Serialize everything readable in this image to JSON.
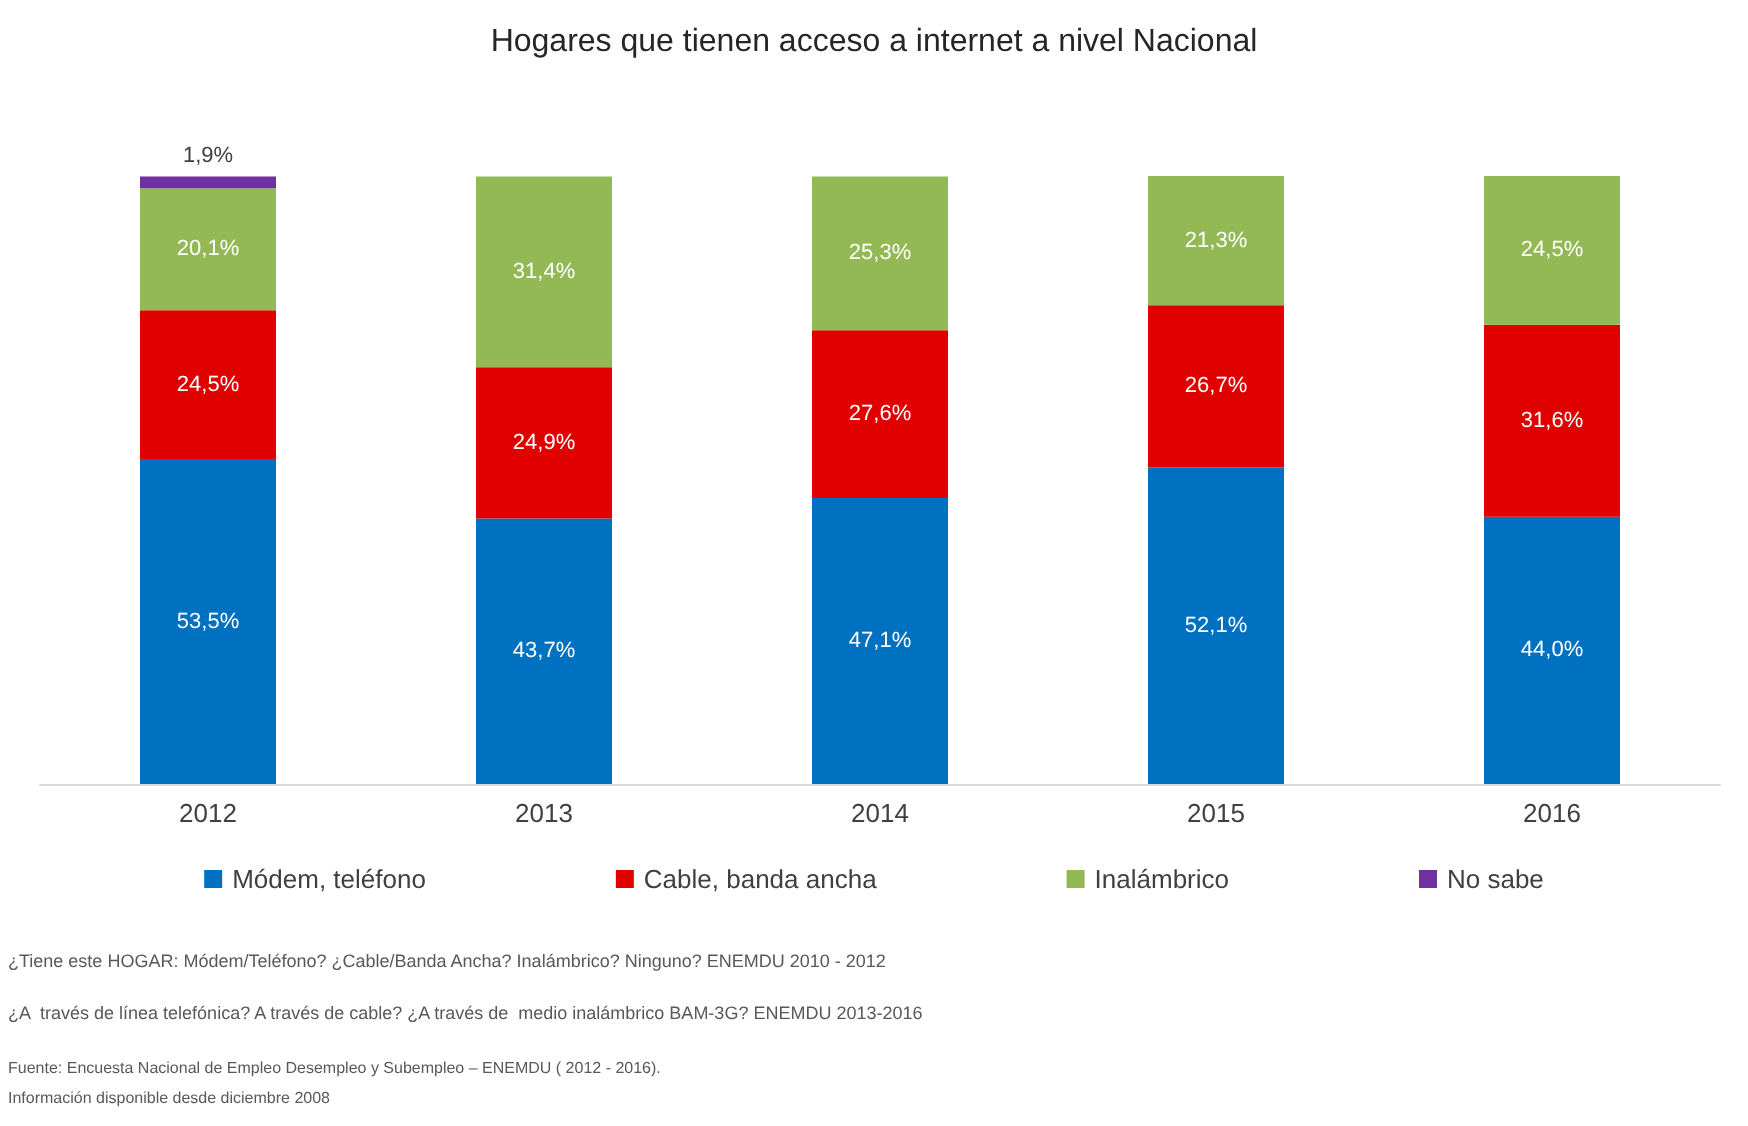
{
  "chart_data": {
    "type": "bar",
    "stacked": true,
    "title": "Hogares que tienen acceso a internet a nivel Nacional",
    "categories": [
      "2012",
      "2013",
      "2014",
      "2015",
      "2016"
    ],
    "series": [
      {
        "name": "Módem, teléfono",
        "color": "#0070c0",
        "values": [
          53.5,
          43.7,
          47.1,
          52.1,
          44.0
        ],
        "value_labels": [
          "53,5%",
          "43,7%",
          "47,1%",
          "52,1%",
          "44,0%"
        ]
      },
      {
        "name": "Cable, banda ancha",
        "color": "#e00000",
        "values": [
          24.5,
          24.9,
          27.6,
          26.7,
          31.6
        ],
        "value_labels": [
          "24,5%",
          "24,9%",
          "27,6%",
          "26,7%",
          "31,6%"
        ]
      },
      {
        "name": "Inalámbrico",
        "color": "#92b954",
        "values": [
          20.1,
          31.4,
          25.3,
          21.3,
          24.5
        ],
        "value_labels": [
          "20,1%",
          "31,4%",
          "25,3%",
          "21,3%",
          "24,5%"
        ]
      },
      {
        "name": "No sabe",
        "color": "#7030a0",
        "values": [
          1.9,
          null,
          null,
          null,
          null
        ],
        "value_labels": [
          "1,9%",
          null,
          null,
          null,
          null
        ]
      }
    ],
    "legend": "bottom",
    "annotations": [
      "¿Tiene este HOGAR: Módem/Teléfono? ¿Cable/Banda Ancha? Inalámbrico? Ninguno? ENEMDU 2010 - 2012",
      "¿A  través de línea telefónica? A través de cable? ¿A través de  medio inalámbrico BAM-3G? ENEMDU 2013-2016",
      "Fuente: Encuesta Nacional de Empleo Desempleo y Subempleo – ENEMDU ( 2012 - 2016).",
      "Información disponible desde diciembre 2008"
    ]
  }
}
